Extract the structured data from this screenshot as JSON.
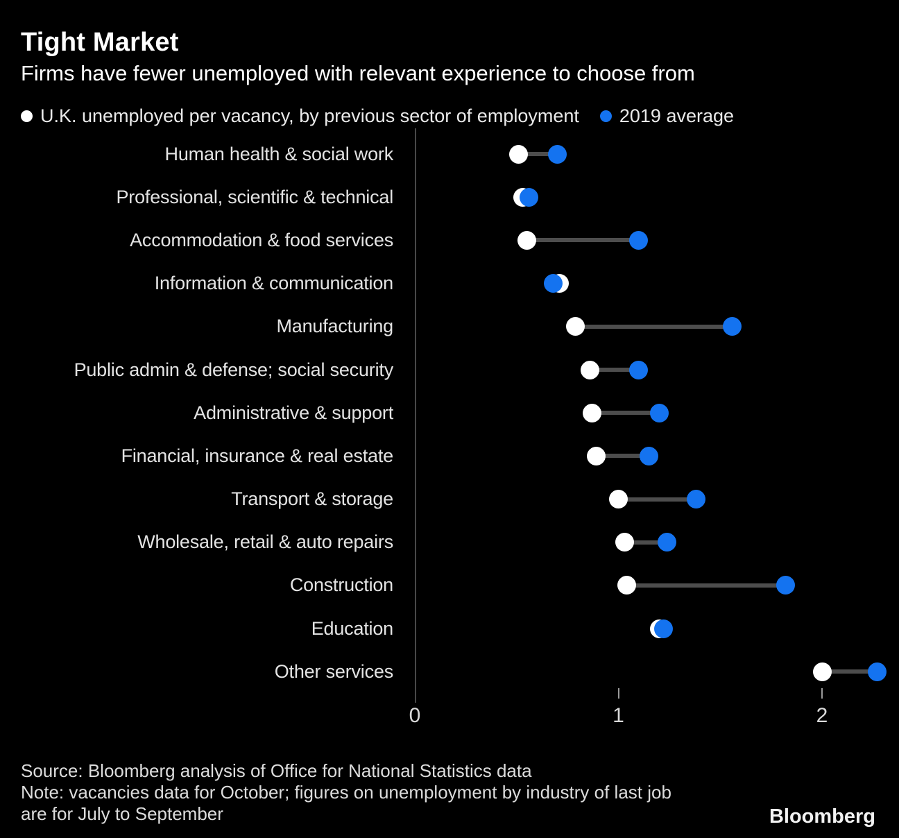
{
  "header": {
    "title": "Tight Market",
    "subtitle": "Firms have fewer unemployed with relevant experience to choose from"
  },
  "legend": {
    "series1": "U.K. unemployed per vacancy, by previous sector of employment",
    "series2": "2019 average"
  },
  "chart_data": {
    "type": "scatter",
    "subtype": "dumbbell",
    "orientation": "horizontal",
    "title": "Tight Market",
    "subtitle": "Firms have fewer unemployed with relevant experience to choose from",
    "categories": [
      "Human health & social work",
      "Professional, scientific & technical",
      "Accommodation & food services",
      "Information & communication",
      "Manufacturing",
      "Public admin & defense; social security",
      "Administrative & support",
      "Financial, insurance & real estate",
      "Transport & storage",
      "Wholesale, retail & auto repairs",
      "Construction",
      "Education",
      "Other services"
    ],
    "series": [
      {
        "name": "U.K. unemployed per vacancy, by previous sector of employment",
        "color": "#ffffff",
        "values": [
          0.51,
          0.53,
          0.55,
          0.71,
          0.79,
          0.86,
          0.87,
          0.89,
          1.0,
          1.03,
          1.04,
          1.2,
          2.0
        ]
      },
      {
        "name": "2019 average",
        "color": "#1473f0",
        "values": [
          0.7,
          0.56,
          1.1,
          0.68,
          1.56,
          1.1,
          1.2,
          1.15,
          1.38,
          1.24,
          1.82,
          1.22,
          2.27
        ]
      }
    ],
    "xlim": [
      0,
      2.38
    ],
    "x_ticks": [
      0,
      1,
      2
    ],
    "grid": false,
    "legend_position": "top",
    "connector_color": "#4d4d4d",
    "background_color": "#000000"
  },
  "footer": {
    "source": "Source: Bloomberg analysis of Office for National Statistics data",
    "note_line1": "Note: vacancies data for October; figures on unemployment by industry of last job",
    "note_line2": "are for July to September",
    "logo": "Bloomberg"
  }
}
